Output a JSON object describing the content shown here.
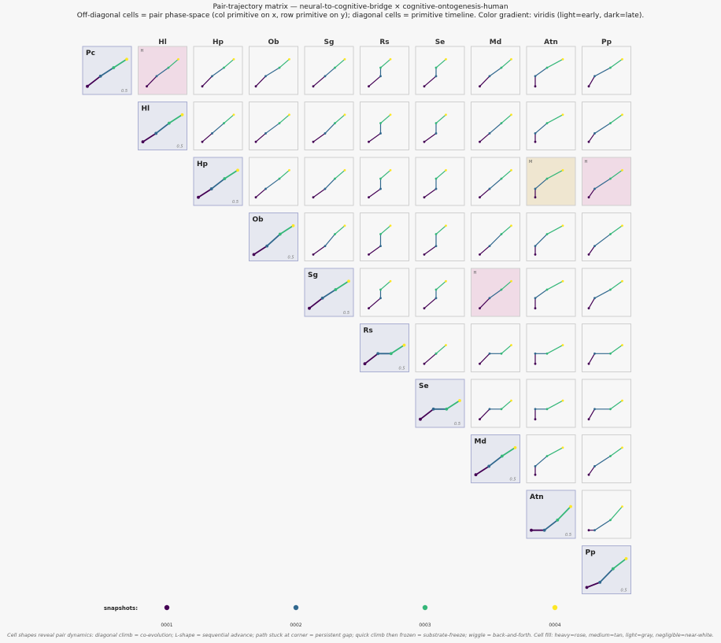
{
  "header": {
    "title": "Pair-trajectory matrix — neural-to-cognitive-bridge × cognitive-ontogenesis-human",
    "subtitle": "Off-diagonal cells = pair phase-space (col primitive on x, row primitive on y); diagonal cells = primitive timeline. Color gradient: viridis (light=early, dark=late)."
  },
  "footer": {
    "note": "Cell shapes reveal pair dynamics: diagonal climb = co-evolution; L-shape = sequential advance; path stuck at corner = persistent gap; quick climb then frozen = substrate-freeze; wiggle = back-and-forth. Cell fill: heavy=rose, medium=tan, light=gray, negligible=near-white."
  },
  "colors": {
    "snapshots": [
      "#440154",
      "#31688e",
      "#35b779",
      "#fde725"
    ],
    "fill_heavy": "#f0dbe6",
    "fill_medium": "#efe6d0",
    "fill_diag": "#e6e8f0",
    "fill_cell": "#f7f7f7"
  },
  "chart_data": {
    "type": "pair-trajectory-matrix",
    "primitives": [
      "Pc",
      "Hl",
      "Hp",
      "Ob",
      "Sg",
      "Rs",
      "Se",
      "Md",
      "Atn",
      "Pp"
    ],
    "column_labels": [
      "Hl",
      "Hp",
      "Ob",
      "Sg",
      "Rs",
      "Se",
      "Md",
      "Atn",
      "Pp"
    ],
    "legend_title": "snapshots:",
    "snapshots": [
      "0001",
      "0002",
      "0003",
      "0004"
    ],
    "diag_scale_label": "0.5",
    "values": {
      "Pc": [
        0.1,
        0.4,
        0.65,
        0.9
      ],
      "Hl": [
        0.1,
        0.35,
        0.65,
        0.9
      ],
      "Hp": [
        0.1,
        0.35,
        0.65,
        0.9
      ],
      "Ob": [
        0.05,
        0.3,
        0.65,
        0.9
      ],
      "Sg": [
        0.1,
        0.4,
        0.65,
        0.9
      ],
      "Rs": [
        0.1,
        0.4,
        0.4,
        0.65
      ],
      "Se": [
        0.1,
        0.4,
        0.4,
        0.65
      ],
      "Md": [
        0.1,
        0.35,
        0.65,
        0.9
      ],
      "Atn": [
        0.1,
        0.1,
        0.4,
        0.8
      ],
      "Pp": [
        0.05,
        0.2,
        0.6,
        0.9
      ]
    },
    "cell_flags": [
      {
        "row": "Pc",
        "col": "Hl",
        "flag": "H",
        "weight": "heavy"
      },
      {
        "row": "Hp",
        "col": "Atn",
        "flag": "M",
        "weight": "medium"
      },
      {
        "row": "Hp",
        "col": "Pp",
        "flag": "H",
        "weight": "heavy"
      },
      {
        "row": "Sg",
        "col": "Md",
        "flag": "H",
        "weight": "heavy"
      }
    ]
  }
}
